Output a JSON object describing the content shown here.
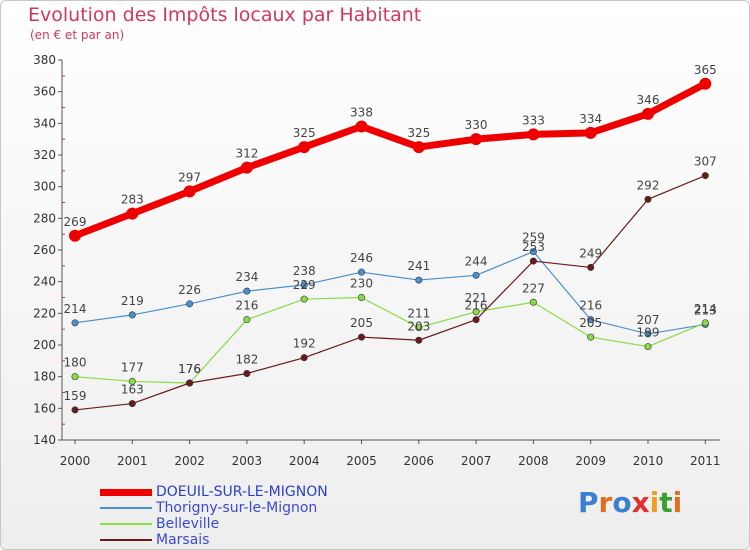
{
  "header": {
    "title": "Evolution des Impôts locaux par Habitant",
    "subtitle": "(en € et par an)"
  },
  "logo": {
    "text": "Proxiti"
  },
  "chart_data": {
    "type": "line",
    "title": "Evolution des Impôts locaux par Habitant",
    "subtitle": "(en € et par an)",
    "xlabel": "",
    "ylabel": "",
    "ylim": [
      140,
      380
    ],
    "yticks": [
      140,
      160,
      180,
      200,
      220,
      240,
      260,
      280,
      300,
      320,
      340,
      360,
      380
    ],
    "grid": false,
    "legend_position": "bottom-left",
    "categories": [
      "2000",
      "2001",
      "2002",
      "2003",
      "2004",
      "2005",
      "2006",
      "2007",
      "2008",
      "2009",
      "2010",
      "2011"
    ],
    "series": [
      {
        "name": "DOEUIL-SUR-LE-MIGNON",
        "color": "#ee0000",
        "values": [
          269,
          283,
          297,
          312,
          325,
          338,
          325,
          330,
          333,
          334,
          346,
          365
        ]
      },
      {
        "name": "Thorigny-sur-le-Mignon",
        "color": "#4a8fd0",
        "values": [
          214,
          219,
          226,
          234,
          238,
          246,
          241,
          244,
          259,
          216,
          207,
          213
        ]
      },
      {
        "name": "Belleville",
        "color": "#88dd44",
        "values": [
          180,
          177,
          176,
          216,
          229,
          230,
          211,
          221,
          227,
          205,
          199,
          214
        ]
      },
      {
        "name": "Marsais",
        "color": "#6b1a1a",
        "values": [
          159,
          163,
          176,
          182,
          192,
          205,
          203,
          216,
          253,
          249,
          292,
          307
        ]
      }
    ]
  }
}
